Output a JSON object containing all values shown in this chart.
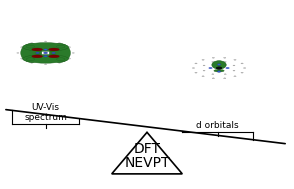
{
  "background_color": "#ffffff",
  "triangle_color": "#ffffff",
  "triangle_edge_color": "#000000",
  "triangle_linewidth": 1.2,
  "dft_text": "DFT",
  "nevpt_text": "NEVPT",
  "text_fontsize": 10,
  "text_color": "#000000",
  "beam_color": "#000000",
  "beam_linewidth": 1.2,
  "label_uvvis": "UV-Vis\nspectrum",
  "label_dorb": "d orbitals",
  "label_fontsize": 6.5,
  "bracket_color": "#000000",
  "bracket_linewidth": 0.8,
  "green": "#2a7a2a",
  "dark_red": "#7a0000",
  "blue": "#3060d0",
  "gray_atom": "#c8c8c8",
  "black": "#111111"
}
